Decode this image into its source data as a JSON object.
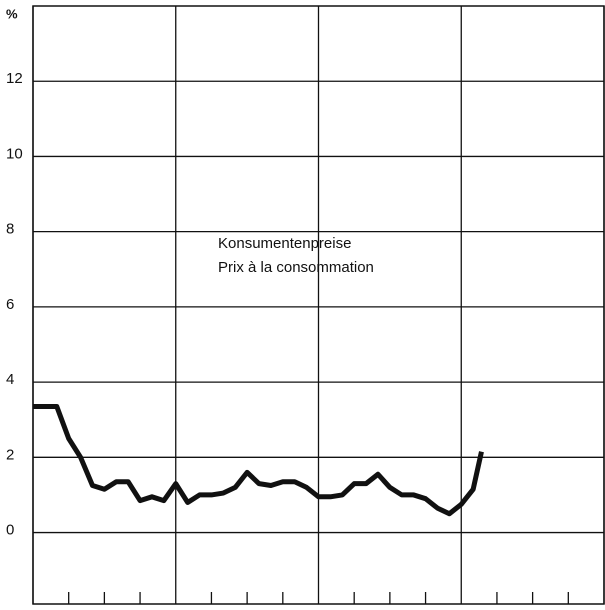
{
  "chart_data": {
    "type": "line",
    "y_label": "%",
    "annotations": [
      "Konsumentenpreise",
      "Prix à la consommation"
    ],
    "x": [
      0,
      1,
      2,
      3,
      4,
      5,
      6,
      7,
      8,
      9,
      10,
      11,
      12,
      13,
      14,
      15,
      16,
      17,
      18,
      19,
      20,
      21,
      22,
      23,
      24,
      25,
      26,
      27,
      28,
      29,
      30,
      31,
      32,
      33,
      34,
      35,
      36,
      37,
      37.7
    ],
    "series": [
      {
        "color": "#111111",
        "values": [
          3.35,
          3.35,
          3.35,
          2.5,
          2.0,
          1.25,
          1.15,
          1.35,
          1.35,
          0.85,
          0.95,
          0.85,
          1.3,
          0.8,
          1.0,
          1.0,
          1.05,
          1.2,
          1.6,
          1.3,
          1.25,
          1.35,
          1.35,
          1.2,
          0.95,
          0.95,
          1.0,
          1.3,
          1.3,
          1.55,
          1.2,
          1.0,
          1.0,
          0.9,
          0.65,
          0.5,
          0.75,
          1.15,
          2.15
        ]
      }
    ],
    "xlim": [
      0,
      48
    ],
    "xticks": [
      0,
      3,
      6,
      9,
      12,
      15,
      18,
      21,
      24,
      27,
      30,
      33,
      36,
      39,
      42,
      45,
      48
    ],
    "ylim": [
      -1.9,
      14
    ],
    "yticks": [
      0,
      2,
      4,
      6,
      8,
      10,
      12
    ],
    "grid": true
  }
}
